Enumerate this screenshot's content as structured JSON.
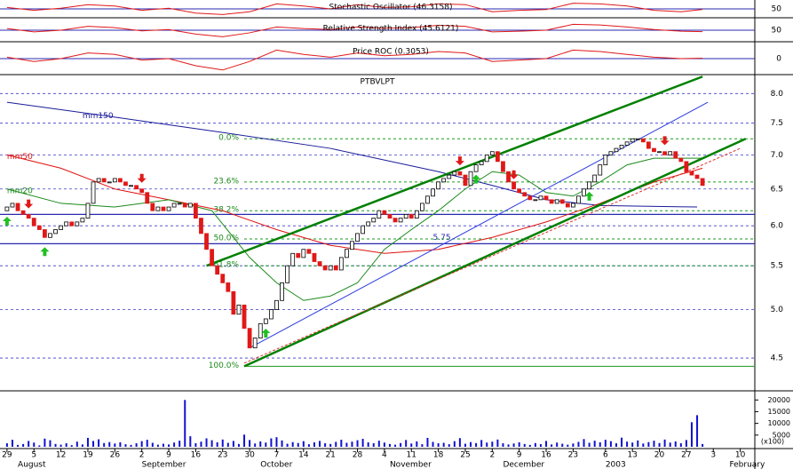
{
  "chart_data": {
    "type": "candlestick",
    "title": "PTBVLPT",
    "log_scale": true,
    "ylim": [
      4.19,
      8.32
    ],
    "yticks": [
      {
        "value": 8,
        "label": "8.0"
      },
      7.5,
      {
        "value": 7,
        "label": "7.0"
      },
      6.5,
      {
        "value": 6,
        "label": "6.0"
      },
      5.5,
      {
        "value": 5,
        "label": "5.0"
      },
      4.5
    ],
    "xlim": [
      -1.3,
      138.7
    ],
    "xticks": [
      {
        "value": 0,
        "label": "29"
      },
      {
        "value": 5,
        "label": "5"
      },
      {
        "value": 10,
        "label": "12"
      },
      {
        "value": 15,
        "label": "19"
      },
      {
        "value": 20,
        "label": "26"
      },
      {
        "value": 25,
        "label": "2"
      },
      {
        "value": 30,
        "label": "9"
      },
      {
        "value": 35,
        "label": "16"
      },
      {
        "value": 40,
        "label": "23"
      },
      {
        "value": 45,
        "label": "30"
      },
      {
        "value": 50,
        "label": "7"
      },
      {
        "value": 55,
        "label": "14"
      },
      {
        "value": 60,
        "label": "21"
      },
      {
        "value": 65,
        "label": "28"
      },
      {
        "value": 70,
        "label": "4"
      },
      {
        "value": 75,
        "label": "11"
      },
      {
        "value": 80,
        "label": "18"
      },
      {
        "value": 85,
        "label": "25"
      },
      {
        "value": 90,
        "label": "2"
      },
      {
        "value": 95,
        "label": "9"
      },
      {
        "value": 100,
        "label": "16"
      },
      {
        "value": 105,
        "label": "23"
      },
      {
        "value": 111,
        "label": "6"
      },
      {
        "value": 116,
        "label": "13"
      },
      {
        "value": 121,
        "label": "20"
      },
      {
        "value": 126,
        "label": "27"
      },
      {
        "value": 131,
        "label": "3"
      },
      {
        "value": 136,
        "label": "10"
      }
    ],
    "months": [
      {
        "value": 2,
        "label": "August"
      },
      {
        "value": 25,
        "label": "September"
      },
      {
        "value": 47,
        "label": "October"
      },
      {
        "value": 71,
        "label": "November"
      },
      {
        "value": 92,
        "label": "December"
      },
      {
        "value": 111,
        "label": "2003"
      },
      {
        "value": 134,
        "label": "February"
      }
    ],
    "open": [
      6.2,
      6.25,
      6.3,
      6.2,
      6.15,
      6.1,
      6.0,
      5.95,
      5.85,
      5.9,
      5.95,
      6.0,
      6.05,
      6.0,
      6.05,
      6.1,
      6.3,
      6.6,
      6.65,
      6.6,
      6.6,
      6.65,
      6.6,
      6.55,
      6.55,
      6.5,
      6.45,
      6.3,
      6.2,
      6.25,
      6.2,
      6.25,
      6.3,
      6.3,
      6.25,
      6.3,
      6.1,
      5.9,
      5.7,
      5.5,
      5.4,
      5.3,
      5.2,
      4.95,
      5.05,
      4.8,
      4.6,
      4.7,
      4.85,
      4.9,
      5.0,
      5.1,
      5.3,
      5.5,
      5.65,
      5.6,
      5.7,
      5.65,
      5.55,
      5.5,
      5.45,
      5.5,
      5.45,
      5.6,
      5.7,
      5.8,
      5.9,
      6.0,
      6.05,
      6.1,
      6.2,
      6.15,
      6.1,
      6.05,
      6.1,
      6.15,
      6.1,
      6.2,
      6.3,
      6.4,
      6.5,
      6.6,
      6.65,
      6.7,
      6.75,
      6.7,
      6.55,
      6.75,
      6.85,
      6.9,
      7.0,
      7.05,
      6.9,
      6.75,
      6.6,
      6.5,
      6.45,
      6.4,
      6.35,
      6.35,
      6.4,
      6.35,
      6.3,
      6.35,
      6.3,
      6.25,
      6.3,
      6.4,
      6.5,
      6.6,
      6.7,
      6.85,
      7.0,
      7.05,
      7.1,
      7.15,
      7.2,
      7.25,
      7.25,
      7.2,
      7.1,
      7.05,
      7.05,
      7.0,
      7.05,
      6.95,
      6.9,
      6.75,
      6.7,
      6.65
    ],
    "close": [
      6.25,
      6.3,
      6.2,
      6.15,
      6.1,
      6.0,
      5.95,
      5.85,
      5.9,
      5.95,
      6.0,
      6.05,
      6.0,
      6.05,
      6.1,
      6.3,
      6.6,
      6.65,
      6.6,
      6.6,
      6.65,
      6.6,
      6.55,
      6.55,
      6.5,
      6.45,
      6.3,
      6.2,
      6.25,
      6.2,
      6.25,
      6.3,
      6.3,
      6.25,
      6.3,
      6.1,
      5.9,
      5.7,
      5.5,
      5.4,
      5.3,
      5.2,
      4.95,
      5.05,
      4.8,
      4.6,
      4.7,
      4.85,
      4.9,
      5.0,
      5.1,
      5.3,
      5.5,
      5.65,
      5.6,
      5.7,
      5.65,
      5.55,
      5.5,
      5.45,
      5.5,
      5.45,
      5.6,
      5.7,
      5.8,
      5.9,
      6.0,
      6.05,
      6.1,
      6.2,
      6.15,
      6.1,
      6.05,
      6.1,
      6.15,
      6.1,
      6.2,
      6.3,
      6.4,
      6.5,
      6.6,
      6.65,
      6.7,
      6.75,
      6.7,
      6.55,
      6.75,
      6.85,
      6.9,
      7.0,
      7.05,
      6.9,
      6.75,
      6.6,
      6.5,
      6.45,
      6.4,
      6.35,
      6.35,
      6.4,
      6.35,
      6.3,
      6.35,
      6.3,
      6.25,
      6.3,
      6.4,
      6.5,
      6.6,
      6.7,
      6.85,
      7.0,
      7.05,
      7.1,
      7.15,
      7.2,
      7.25,
      7.25,
      7.2,
      7.1,
      7.05,
      7.05,
      7.0,
      7.05,
      6.95,
      6.9,
      6.75,
      6.7,
      6.65,
      6.55
    ],
    "moving_averages": [
      {
        "name": "mm150",
        "color": "#1a1a9a",
        "x": [
          0,
          20,
          40,
          60,
          80,
          90,
          100,
          110,
          128
        ],
        "values": [
          7.85,
          7.6,
          7.35,
          7.1,
          6.75,
          6.55,
          6.35,
          6.27,
          6.25
        ]
      },
      {
        "name": "mm50",
        "color": "#e01010",
        "x": [
          0,
          10,
          20,
          30,
          40,
          50,
          60,
          70,
          80,
          90,
          100,
          110,
          120,
          129
        ],
        "values": [
          7.0,
          6.8,
          6.5,
          6.35,
          6.2,
          5.95,
          5.75,
          5.65,
          5.7,
          5.85,
          6.05,
          6.3,
          6.6,
          6.8
        ]
      },
      {
        "name": "mm20",
        "color": "#1a8a1a",
        "x": [
          0,
          10,
          20,
          30,
          38,
          45,
          50,
          55,
          60,
          65,
          70,
          75,
          80,
          85,
          90,
          95,
          100,
          105,
          110,
          115,
          120,
          129
        ],
        "values": [
          6.5,
          6.3,
          6.25,
          6.35,
          6.2,
          5.6,
          5.3,
          5.1,
          5.15,
          5.3,
          5.7,
          5.95,
          6.2,
          6.5,
          6.75,
          6.7,
          6.45,
          6.4,
          6.6,
          6.85,
          6.95,
          6.95
        ]
      }
    ],
    "fib_levels": [
      {
        "value": 7.25,
        "label": "0.0%"
      },
      {
        "value": 6.6,
        "label": "23.6%"
      },
      {
        "value": 6.2,
        "label": "38.2%"
      },
      {
        "value": 5.83,
        "label": "50.0%"
      },
      {
        "value": 5.5,
        "label": "61.8%"
      },
      {
        "value": 4.42,
        "label": "100.0%"
      }
    ],
    "fib_start": 44,
    "support_lines": [
      6.15,
      5.77
    ],
    "support_label": "5.75",
    "trendlines": [
      {
        "color": "#008000",
        "x": [
          37,
          129
        ],
        "values": [
          5.5,
          8.3
        ]
      },
      {
        "color": "#008000",
        "x": [
          44,
          137
        ],
        "values": [
          4.42,
          7.25
        ]
      },
      {
        "color": "#2a3adf",
        "x": [
          45,
          130
        ],
        "values": [
          4.6,
          7.85
        ]
      },
      {
        "color": "#e03030",
        "x": [
          44,
          136
        ],
        "values": [
          4.45,
          7.1
        ]
      }
    ],
    "buy_signals": [
      0,
      7,
      48,
      87,
      108
    ],
    "sell_signals": [
      4,
      25,
      84,
      94,
      122
    ],
    "volume": [
      1500,
      3000,
      800,
      1200,
      2500,
      1800,
      600,
      3500,
      2800,
      1200,
      900,
      1500,
      700,
      2200,
      1000,
      3800,
      2500,
      3200,
      1600,
      2000,
      1400,
      1900,
      1100,
      800,
      1500,
      2400,
      3000,
      1700,
      900,
      1300,
      1000,
      1800,
      2600,
      20000,
      4500,
      1500,
      2200,
      3600,
      2800,
      1900,
      3100,
      1700,
      2500,
      1200,
      5200,
      2900,
      1400,
      2300,
      1800,
      3600,
      4100,
      2700,
      1300,
      2000,
      1600,
      2400,
      1100,
      1900,
      2500,
      1500,
      1200,
      2100,
      3000,
      1700,
      2200,
      2800,
      3400,
      1900,
      1500,
      2600,
      1800,
      1200,
      900,
      1600,
      2900,
      1400,
      2300,
      1100,
      3800,
      2100,
      1500,
      1700,
      1100,
      2400,
      3700,
      1300,
      2000,
      1600,
      2900,
      1800,
      2200,
      3100,
      1500,
      1000,
      1400,
      1900,
      1200,
      800,
      1600,
      1100,
      2500,
      1000,
      1800,
      1300,
      900,
      1400,
      2100,
      3300,
      1700,
      2600,
      1900,
      3000,
      2400,
      1500,
      3900,
      2200,
      1800,
      2700,
      1400,
      2000,
      2600,
      1600,
      3100,
      1800,
      2300,
      1500,
      2900,
      10500,
      13500,
      1200
    ],
    "volume_ylim": [
      0,
      22000
    ],
    "volume_yticks": [
      20000,
      15000,
      10000,
      5000
    ],
    "volume_unit": "(x100)",
    "osc_x": [
      0,
      5,
      10,
      15,
      20,
      25,
      30,
      35,
      40,
      45,
      50,
      55,
      60,
      65,
      70,
      75,
      80,
      85,
      90,
      95,
      100,
      105,
      110,
      115,
      120,
      125,
      129
    ],
    "oscillators": [
      {
        "title": "Stochastic Oscillator (46.3158)",
        "ylim": [
          0,
          100
        ],
        "yticks": [
          50
        ],
        "values": [
          60,
          40,
          55,
          80,
          70,
          40,
          55,
          20,
          10,
          30,
          85,
          70,
          50,
          80,
          60,
          65,
          85,
          80,
          30,
          40,
          45,
          90,
          85,
          70,
          40,
          30,
          46
        ]
      },
      {
        "title": "Relative Strength Index (45.6121)",
        "ylim": [
          20,
          80
        ],
        "yticks": [
          50
        ],
        "values": [
          55,
          45,
          50,
          62,
          58,
          48,
          52,
          38,
          30,
          42,
          60,
          55,
          52,
          60,
          56,
          58,
          65,
          62,
          45,
          47,
          50,
          68,
          66,
          60,
          52,
          47,
          45.6
        ]
      },
      {
        "title": "Price ROC (0.3053)",
        "ylim": [
          -10,
          10
        ],
        "yticks": [
          0
        ],
        "values": [
          1,
          -2,
          0,
          4,
          3,
          -1,
          0,
          -5,
          -8,
          -2,
          6,
          3,
          1,
          4,
          2,
          3,
          5,
          4,
          -2,
          -1,
          0,
          6,
          5,
          3,
          1,
          0,
          0.3
        ]
      }
    ]
  }
}
